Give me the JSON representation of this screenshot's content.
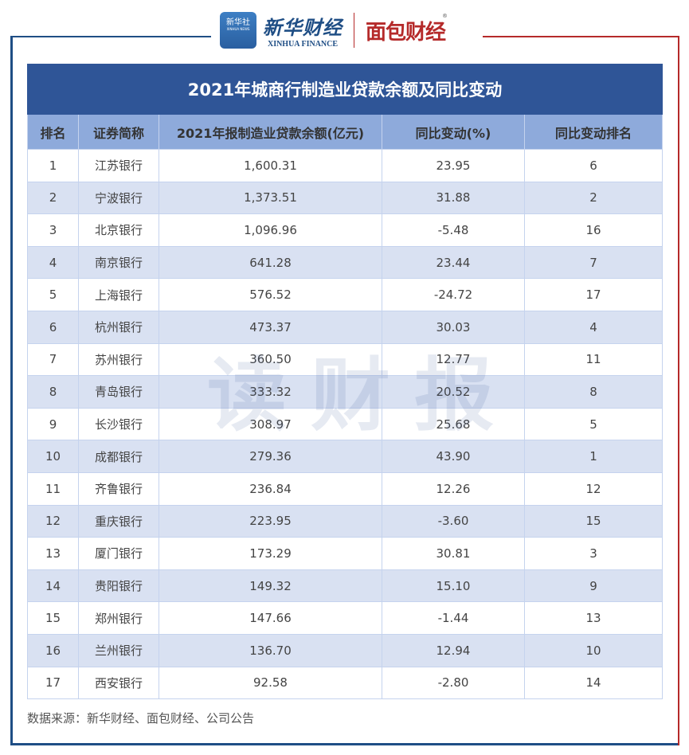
{
  "header": {
    "xinhua_icon_text": "新华社",
    "xinhua_icon_sub": "XINHUA NEWS",
    "xinhua_cn": "新华财经",
    "xinhua_en": "XINHUA FINANCE",
    "mianbao": "面包财经",
    "registered_mark": "®"
  },
  "colors": {
    "frame_blue": "#1f4e85",
    "frame_red": "#b52a2a",
    "title_bg": "#2f5597",
    "header_bg": "#8eaadb",
    "alt_row_bg": "#d9e1f2"
  },
  "table": {
    "title": "2021年城商行制造业贷款余额及同比变动",
    "columns": [
      "排名",
      "证券简称",
      "2021年报制造业贷款余额(亿元)",
      "同比变动(%)",
      "同比变动排名"
    ],
    "rows": [
      [
        "1",
        "江苏银行",
        "1,600.31",
        "23.95",
        "6"
      ],
      [
        "2",
        "宁波银行",
        "1,373.51",
        "31.88",
        "2"
      ],
      [
        "3",
        "北京银行",
        "1,096.96",
        "-5.48",
        "16"
      ],
      [
        "4",
        "南京银行",
        "641.28",
        "23.44",
        "7"
      ],
      [
        "5",
        "上海银行",
        "576.52",
        "-24.72",
        "17"
      ],
      [
        "6",
        "杭州银行",
        "473.37",
        "30.03",
        "4"
      ],
      [
        "7",
        "苏州银行",
        "360.50",
        "12.77",
        "11"
      ],
      [
        "8",
        "青岛银行",
        "333.32",
        "20.52",
        "8"
      ],
      [
        "9",
        "长沙银行",
        "308.97",
        "25.68",
        "5"
      ],
      [
        "10",
        "成都银行",
        "279.36",
        "43.90",
        "1"
      ],
      [
        "11",
        "齐鲁银行",
        "236.84",
        "12.26",
        "12"
      ],
      [
        "12",
        "重庆银行",
        "223.95",
        "-3.60",
        "15"
      ],
      [
        "13",
        "厦门银行",
        "173.29",
        "30.81",
        "3"
      ],
      [
        "14",
        "贵阳银行",
        "149.32",
        "15.10",
        "9"
      ],
      [
        "15",
        "郑州银行",
        "147.66",
        "-1.44",
        "13"
      ],
      [
        "16",
        "兰州银行",
        "136.70",
        "12.94",
        "10"
      ],
      [
        "17",
        "西安银行",
        "92.58",
        "-2.80",
        "14"
      ]
    ]
  },
  "watermark": "读财报",
  "source": "数据来源：新华财经、面包财经、公司公告"
}
